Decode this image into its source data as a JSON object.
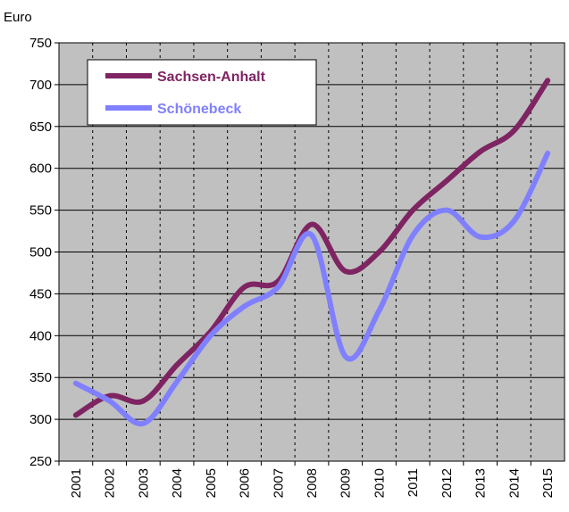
{
  "chart_data": {
    "type": "line",
    "y_label": "Euro",
    "categories": [
      "2001",
      "2002",
      "2003",
      "2004",
      "2005",
      "2006",
      "2007",
      "2008",
      "2009",
      "2010",
      "2011",
      "2012",
      "2013",
      "2014",
      "2015"
    ],
    "series": [
      {
        "name": "Sachsen-Anhalt",
        "color": "#7f2462",
        "values": [
          305,
          328,
          322,
          365,
          405,
          458,
          465,
          533,
          477,
          500,
          550,
          585,
          620,
          645,
          705
        ]
      },
      {
        "name": "Schönebeck",
        "color": "#8080ff",
        "values": [
          343,
          322,
          295,
          345,
          400,
          435,
          458,
          520,
          375,
          430,
          520,
          550,
          518,
          537,
          618
        ]
      }
    ],
    "ylim": [
      250,
      750
    ],
    "yticks": [
      250,
      300,
      350,
      400,
      450,
      500,
      550,
      600,
      650,
      700,
      750
    ],
    "grid": true,
    "smooth": true,
    "legend": "upper left",
    "background": "#c0c0c0"
  }
}
